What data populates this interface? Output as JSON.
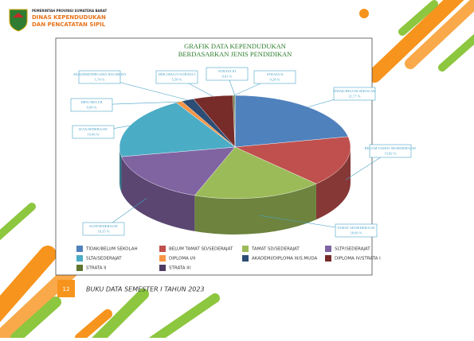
{
  "header": {
    "agency": "PEMERINTAH PROVINSI SUMATERA BARAT",
    "line1": "DINAS KEPENDUDUKAN",
    "line2": "DAN PENCATATAN SIPIL"
  },
  "footer": {
    "page": "12",
    "text": "BUKU DATA SEMESTER I TAHUN 2023"
  },
  "chart_data": {
    "type": "pie",
    "title": "GRAFIK DATA KEPENDUDUKAN",
    "subtitle": "BERDASARKAN JENIS PENDIDIKAN",
    "categories": [
      "TIDAK/BELUM SEKOLAH",
      "BELUM TAMAT SD/SEDERAJAT",
      "TAMAT SD/SEDERAJAT",
      "SLTP/SEDERAJAT",
      "SLTA/SEDERAJAT",
      "DIPLOMA I/II",
      "AKADEMI/DIPLOMA III/S.MUDA",
      "DIPLOMA IV/STRATA I",
      "STRATA II",
      "STRATA III"
    ],
    "values": [
      21.77,
      15.82,
      18.09,
      16.35,
      19.46,
      0.9,
      1.74,
      5.58,
      0.28,
      0.01
    ],
    "value_labels": [
      "21,77 %",
      "15,82 %",
      "18,09 %",
      "16,35 %",
      "19,46 %",
      "0,90 %",
      "1,74 %",
      "5,58 %",
      "0,28 %",
      "0,01 %"
    ],
    "colors": [
      "#4f81bd",
      "#c0504d",
      "#9bbb59",
      "#8064a2",
      "#4bacc6",
      "#f79646",
      "#2c4d75",
      "#772c2a",
      "#5f7530",
      "#4d3b62"
    ]
  }
}
